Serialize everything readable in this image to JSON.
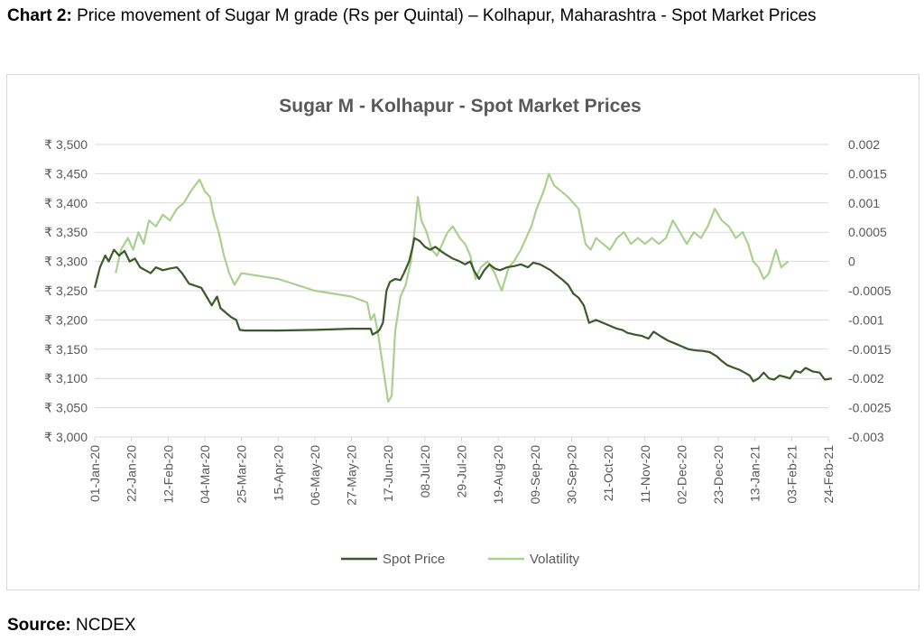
{
  "caption": {
    "label": "Chart 2:",
    "text": "Price movement of Sugar M grade (Rs per Quintal) – Kolhapur, Maharashtra - Spot Market Prices"
  },
  "source": {
    "label": "Source:",
    "text": "NCDEX"
  },
  "chart_data": {
    "type": "line",
    "title": "Sugar M - Kolhapur - Spot Market Prices",
    "x_ticks": [
      "01-Jan-20",
      "22-Jan-20",
      "12-Feb-20",
      "04-Mar-20",
      "25-Mar-20",
      "15-Apr-20",
      "06-May-20",
      "27-May-20",
      "17-Jun-20",
      "08-Jul-20",
      "29-Jul-20",
      "19-Aug-20",
      "09-Sep-20",
      "30-Sep-20",
      "21-Oct-20",
      "11-Nov-20",
      "02-Dec-20",
      "23-Dec-20",
      "13-Jan-21",
      "03-Feb-21",
      "24-Feb-21"
    ],
    "y_left": {
      "ticks": [
        "₹ 3,000",
        "₹ 3,050",
        "₹ 3,100",
        "₹ 3,150",
        "₹ 3,200",
        "₹ 3,250",
        "₹ 3,300",
        "₹ 3,350",
        "₹ 3,400",
        "₹ 3,450",
        "₹ 3,500"
      ],
      "min": 3000,
      "max": 3500
    },
    "y_right": {
      "ticks": [
        "-0.003",
        "-0.0025",
        "-0.002",
        "-0.0015",
        "-0.001",
        "-0.0005",
        "0",
        "0.0005",
        "0.001",
        "0.0015",
        "0.002"
      ],
      "min": -0.003,
      "max": 0.002
    },
    "legend_position": "bottom",
    "grid": true,
    "series": [
      {
        "name": "Spot Price",
        "axis": "left",
        "color": "#3a5a2a",
        "points": [
          [
            "2020-01-01",
            3255
          ],
          [
            "2020-01-04",
            3290
          ],
          [
            "2020-01-07",
            3310
          ],
          [
            "2020-01-09",
            3300
          ],
          [
            "2020-01-12",
            3320
          ],
          [
            "2020-01-15",
            3310
          ],
          [
            "2020-01-18",
            3318
          ],
          [
            "2020-01-21",
            3300
          ],
          [
            "2020-01-24",
            3305
          ],
          [
            "2020-01-27",
            3290
          ],
          [
            "2020-01-30",
            3285
          ],
          [
            "2020-02-02",
            3280
          ],
          [
            "2020-02-05",
            3290
          ],
          [
            "2020-02-09",
            3285
          ],
          [
            "2020-02-13",
            3288
          ],
          [
            "2020-02-17",
            3290
          ],
          [
            "2020-02-20",
            3280
          ],
          [
            "2020-02-24",
            3262
          ],
          [
            "2020-02-28",
            3258
          ],
          [
            "2020-03-02",
            3255
          ],
          [
            "2020-03-05",
            3240
          ],
          [
            "2020-03-08",
            3225
          ],
          [
            "2020-03-11",
            3240
          ],
          [
            "2020-03-13",
            3220
          ],
          [
            "2020-03-17",
            3210
          ],
          [
            "2020-03-19",
            3205
          ],
          [
            "2020-03-22",
            3200
          ],
          [
            "2020-03-24",
            3183
          ],
          [
            "2020-03-27",
            3182
          ],
          [
            "2020-04-15",
            3182
          ],
          [
            "2020-05-06",
            3183
          ],
          [
            "2020-05-27",
            3185
          ],
          [
            "2020-06-07",
            3185
          ],
          [
            "2020-06-08",
            3175
          ],
          [
            "2020-06-11",
            3180
          ],
          [
            "2020-06-12",
            3183
          ],
          [
            "2020-06-14",
            3195
          ],
          [
            "2020-06-16",
            3250
          ],
          [
            "2020-06-18",
            3265
          ],
          [
            "2020-06-21",
            3270
          ],
          [
            "2020-06-24",
            3268
          ],
          [
            "2020-06-26",
            3280
          ],
          [
            "2020-06-29",
            3300
          ],
          [
            "2020-07-01",
            3325
          ],
          [
            "2020-07-02",
            3340
          ],
          [
            "2020-07-05",
            3335
          ],
          [
            "2020-07-08",
            3325
          ],
          [
            "2020-07-11",
            3320
          ],
          [
            "2020-07-14",
            3325
          ],
          [
            "2020-07-17",
            3318
          ],
          [
            "2020-07-20",
            3312
          ],
          [
            "2020-07-24",
            3305
          ],
          [
            "2020-07-28",
            3300
          ],
          [
            "2020-07-31",
            3295
          ],
          [
            "2020-08-03",
            3300
          ],
          [
            "2020-08-05",
            3285
          ],
          [
            "2020-08-08",
            3270
          ],
          [
            "2020-08-11",
            3285
          ],
          [
            "2020-08-14",
            3295
          ],
          [
            "2020-08-17",
            3288
          ],
          [
            "2020-08-20",
            3285
          ],
          [
            "2020-08-24",
            3290
          ],
          [
            "2020-08-28",
            3292
          ],
          [
            "2020-09-01",
            3295
          ],
          [
            "2020-09-05",
            3290
          ],
          [
            "2020-09-08",
            3298
          ],
          [
            "2020-09-12",
            3295
          ],
          [
            "2020-09-15",
            3290
          ],
          [
            "2020-09-18",
            3285
          ],
          [
            "2020-09-22",
            3275
          ],
          [
            "2020-09-25",
            3268
          ],
          [
            "2020-09-28",
            3260
          ],
          [
            "2020-10-01",
            3245
          ],
          [
            "2020-10-04",
            3238
          ],
          [
            "2020-10-07",
            3225
          ],
          [
            "2020-10-10",
            3195
          ],
          [
            "2020-10-14",
            3200
          ],
          [
            "2020-10-18",
            3195
          ],
          [
            "2020-10-22",
            3190
          ],
          [
            "2020-10-26",
            3185
          ],
          [
            "2020-10-29",
            3183
          ],
          [
            "2020-11-01",
            3178
          ],
          [
            "2020-11-05",
            3175
          ],
          [
            "2020-11-09",
            3173
          ],
          [
            "2020-11-13",
            3168
          ],
          [
            "2020-11-16",
            3180
          ],
          [
            "2020-11-20",
            3172
          ],
          [
            "2020-11-24",
            3165
          ],
          [
            "2020-11-28",
            3160
          ],
          [
            "2020-12-02",
            3155
          ],
          [
            "2020-12-06",
            3150
          ],
          [
            "2020-12-10",
            3148
          ],
          [
            "2020-12-14",
            3147
          ],
          [
            "2020-12-18",
            3145
          ],
          [
            "2020-12-22",
            3138
          ],
          [
            "2020-12-25",
            3130
          ],
          [
            "2020-12-28",
            3123
          ],
          [
            "2021-01-01",
            3118
          ],
          [
            "2021-01-04",
            3115
          ],
          [
            "2021-01-07",
            3110
          ],
          [
            "2021-01-10",
            3105
          ],
          [
            "2021-01-12",
            3095
          ],
          [
            "2021-01-15",
            3100
          ],
          [
            "2021-01-18",
            3110
          ],
          [
            "2021-01-21",
            3100
          ],
          [
            "2021-01-24",
            3098
          ],
          [
            "2021-01-27",
            3105
          ],
          [
            "2021-01-30",
            3103
          ],
          [
            "2021-02-02",
            3100
          ],
          [
            "2021-02-05",
            3113
          ],
          [
            "2021-02-08",
            3110
          ],
          [
            "2021-02-11",
            3118
          ],
          [
            "2021-02-15",
            3112
          ],
          [
            "2021-02-19",
            3110
          ],
          [
            "2021-02-22",
            3098
          ],
          [
            "2021-02-26",
            3100
          ]
        ]
      },
      {
        "name": "Volatility",
        "axis": "right",
        "color": "#a9d18e",
        "points": [
          [
            "2020-01-13",
            -0.0002
          ],
          [
            "2020-01-16",
            0.0002
          ],
          [
            "2020-01-20",
            0.0004
          ],
          [
            "2020-01-23",
            0.0002
          ],
          [
            "2020-01-26",
            0.0005
          ],
          [
            "2020-01-29",
            0.0003
          ],
          [
            "2020-02-01",
            0.0007
          ],
          [
            "2020-02-05",
            0.0006
          ],
          [
            "2020-02-09",
            0.0008
          ],
          [
            "2020-02-13",
            0.0007
          ],
          [
            "2020-02-17",
            0.0009
          ],
          [
            "2020-02-21",
            0.001
          ],
          [
            "2020-02-25",
            0.0012
          ],
          [
            "2020-03-01",
            0.0014
          ],
          [
            "2020-03-04",
            0.0012
          ],
          [
            "2020-03-07",
            0.0011
          ],
          [
            "2020-03-09",
            0.0008
          ],
          [
            "2020-03-12",
            0.0005
          ],
          [
            "2020-03-15",
            0.0001
          ],
          [
            "2020-03-18",
            -0.0002
          ],
          [
            "2020-03-21",
            -0.0004
          ],
          [
            "2020-03-25",
            -0.0002
          ],
          [
            "2020-04-15",
            -0.0003
          ],
          [
            "2020-05-06",
            -0.0005
          ],
          [
            "2020-05-27",
            -0.0006
          ],
          [
            "2020-06-05",
            -0.0007
          ],
          [
            "2020-06-07",
            -0.001
          ],
          [
            "2020-06-09",
            -0.0009
          ],
          [
            "2020-06-11",
            -0.0012
          ],
          [
            "2020-06-13",
            -0.0016
          ],
          [
            "2020-06-15",
            -0.002
          ],
          [
            "2020-06-17",
            -0.0024
          ],
          [
            "2020-06-19",
            -0.0023
          ],
          [
            "2020-06-21",
            -0.0012
          ],
          [
            "2020-06-24",
            -0.0006
          ],
          [
            "2020-06-27",
            -0.0004
          ],
          [
            "2020-06-30",
            0.0
          ],
          [
            "2020-07-02",
            0.0005
          ],
          [
            "2020-07-04",
            0.0011
          ],
          [
            "2020-07-06",
            0.0007
          ],
          [
            "2020-07-09",
            0.0005
          ],
          [
            "2020-07-12",
            0.0002
          ],
          [
            "2020-07-15",
            0.0001
          ],
          [
            "2020-07-18",
            0.0003
          ],
          [
            "2020-07-21",
            0.0005
          ],
          [
            "2020-07-24",
            0.0006
          ],
          [
            "2020-07-28",
            0.0004
          ],
          [
            "2020-07-31",
            0.0003
          ],
          [
            "2020-08-03",
            0.0001
          ],
          [
            "2020-08-06",
            -0.0003
          ],
          [
            "2020-08-09",
            -0.0001
          ],
          [
            "2020-08-13",
            0.0
          ],
          [
            "2020-08-17",
            -0.0002
          ],
          [
            "2020-08-21",
            -0.0005
          ],
          [
            "2020-08-25",
            -0.0001
          ],
          [
            "2020-08-28",
            0.0
          ],
          [
            "2020-09-01",
            0.0002
          ],
          [
            "2020-09-04",
            0.0004
          ],
          [
            "2020-09-07",
            0.0006
          ],
          [
            "2020-09-10",
            0.0009
          ],
          [
            "2020-09-14",
            0.0012
          ],
          [
            "2020-09-17",
            0.0015
          ],
          [
            "2020-09-20",
            0.0013
          ],
          [
            "2020-09-24",
            0.0012
          ],
          [
            "2020-09-28",
            0.0011
          ],
          [
            "2020-10-01",
            0.001
          ],
          [
            "2020-10-04",
            0.0009
          ],
          [
            "2020-10-06",
            0.0006
          ],
          [
            "2020-10-08",
            0.0003
          ],
          [
            "2020-10-11",
            0.0002
          ],
          [
            "2020-10-14",
            0.0004
          ],
          [
            "2020-10-18",
            0.0003
          ],
          [
            "2020-10-22",
            0.0002
          ],
          [
            "2020-10-26",
            0.0004
          ],
          [
            "2020-10-30",
            0.0005
          ],
          [
            "2020-11-03",
            0.0003
          ],
          [
            "2020-11-07",
            0.0004
          ],
          [
            "2020-11-11",
            0.0003
          ],
          [
            "2020-11-15",
            0.0004
          ],
          [
            "2020-11-19",
            0.0003
          ],
          [
            "2020-11-23",
            0.0004
          ],
          [
            "2020-11-27",
            0.0007
          ],
          [
            "2020-12-01",
            0.0005
          ],
          [
            "2020-12-05",
            0.0003
          ],
          [
            "2020-12-09",
            0.0005
          ],
          [
            "2020-12-13",
            0.0004
          ],
          [
            "2020-12-17",
            0.0006
          ],
          [
            "2020-12-21",
            0.0009
          ],
          [
            "2020-12-25",
            0.0007
          ],
          [
            "2020-12-29",
            0.0006
          ],
          [
            "2021-01-02",
            0.0004
          ],
          [
            "2021-01-06",
            0.0005
          ],
          [
            "2021-01-09",
            0.0003
          ],
          [
            "2021-01-12",
            0.0
          ],
          [
            "2021-01-15",
            -0.0001
          ],
          [
            "2021-01-18",
            -0.0003
          ],
          [
            "2021-01-21",
            -0.0002
          ],
          [
            "2021-01-25",
            0.0002
          ],
          [
            "2021-01-28",
            -0.0001
          ],
          [
            "2021-02-01",
            0.0
          ]
        ]
      }
    ]
  }
}
